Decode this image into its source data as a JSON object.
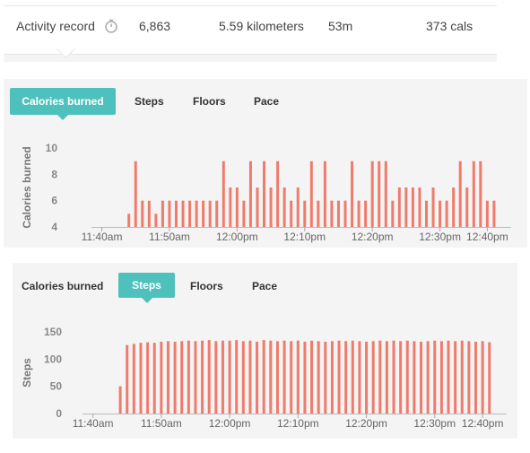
{
  "summary": {
    "label": "Activity record",
    "icon": "timer-icon",
    "steps": "6,863",
    "distance": "5.59 kilometers",
    "duration": "53m",
    "calories": "373 cals"
  },
  "colors": {
    "bar": "#ef7b6b",
    "accent": "#4fc1bd",
    "panel": "#f4f4f4",
    "axis": "#999999"
  },
  "panels": [
    {
      "tabs": [
        {
          "label": "Calories burned",
          "active": true
        },
        {
          "label": "Steps",
          "active": false
        },
        {
          "label": "Floors",
          "active": false
        },
        {
          "label": "Pace",
          "active": false
        }
      ]
    },
    {
      "tabs": [
        {
          "label": "Calories burned",
          "active": false
        },
        {
          "label": "Steps",
          "active": true
        },
        {
          "label": "Floors",
          "active": false
        },
        {
          "label": "Pace",
          "active": false
        }
      ]
    }
  ],
  "chart_data": [
    {
      "type": "bar",
      "title": "",
      "xlabel": "",
      "ylabel": "Calories burned",
      "ylim": [
        4,
        10
      ],
      "yticks": [
        4,
        6,
        8,
        10
      ],
      "xlim": [
        699,
        760
      ],
      "xticks": [
        {
          "x": 700,
          "label": "11:40am"
        },
        {
          "x": 710,
          "label": "11:50am"
        },
        {
          "x": 720,
          "label": "12:00pm"
        },
        {
          "x": 730,
          "label": "12:10pm"
        },
        {
          "x": 740,
          "label": "12:20pm"
        },
        {
          "x": 750,
          "label": "12:30pm"
        },
        {
          "x": 757,
          "label": "12:40pm"
        }
      ],
      "x": [
        704,
        705,
        706,
        707,
        708,
        709,
        710,
        711,
        712,
        713,
        714,
        715,
        716,
        717,
        718,
        719,
        720,
        721,
        722,
        723,
        724,
        725,
        726,
        727,
        728,
        729,
        730,
        731,
        732,
        733,
        734,
        735,
        736,
        737,
        738,
        739,
        740,
        741,
        742,
        743,
        744,
        745,
        746,
        747,
        748,
        749,
        750,
        751,
        752,
        753,
        754,
        755,
        756,
        757,
        758
      ],
      "values": [
        5,
        9,
        6,
        6,
        5,
        6,
        6,
        6,
        6,
        6,
        6,
        6,
        6,
        6,
        9,
        7,
        7,
        6,
        9,
        7,
        9,
        7,
        9,
        7,
        6,
        7,
        6,
        9,
        6,
        9,
        6,
        6,
        6,
        9,
        6,
        6,
        9,
        9,
        9,
        6,
        7,
        7,
        7,
        7,
        6,
        7,
        6,
        6,
        7,
        9,
        7,
        9,
        9,
        6,
        6
      ],
      "grid": false
    },
    {
      "type": "bar",
      "title": "",
      "xlabel": "",
      "ylabel": "Steps",
      "ylim": [
        0,
        150
      ],
      "yticks": [
        0,
        50,
        100,
        150
      ],
      "xlim": [
        699,
        760
      ],
      "xticks": [
        {
          "x": 700,
          "label": "11:40am"
        },
        {
          "x": 710,
          "label": "11:50am"
        },
        {
          "x": 720,
          "label": "12:00pm"
        },
        {
          "x": 730,
          "label": "12:10pm"
        },
        {
          "x": 740,
          "label": "12:20pm"
        },
        {
          "x": 750,
          "label": "12:30pm"
        },
        {
          "x": 757,
          "label": "12:40pm"
        }
      ],
      "x": [
        704,
        705,
        706,
        707,
        708,
        709,
        710,
        711,
        712,
        713,
        714,
        715,
        716,
        717,
        718,
        719,
        720,
        721,
        722,
        723,
        724,
        725,
        726,
        727,
        728,
        729,
        730,
        731,
        732,
        733,
        734,
        735,
        736,
        737,
        738,
        739,
        740,
        741,
        742,
        743,
        744,
        745,
        746,
        747,
        748,
        749,
        750,
        751,
        752,
        753,
        754,
        755,
        756,
        757,
        758
      ],
      "values": [
        50,
        126,
        128,
        130,
        131,
        130,
        132,
        133,
        132,
        133,
        134,
        133,
        134,
        135,
        133,
        134,
        134,
        135,
        133,
        134,
        132,
        135,
        134,
        133,
        134,
        133,
        134,
        132,
        134,
        133,
        132,
        133,
        134,
        133,
        134,
        133,
        132,
        133,
        134,
        133,
        134,
        133,
        134,
        133,
        132,
        133,
        134,
        133,
        134,
        133,
        134,
        133,
        132,
        133,
        131
      ],
      "grid": false
    }
  ]
}
